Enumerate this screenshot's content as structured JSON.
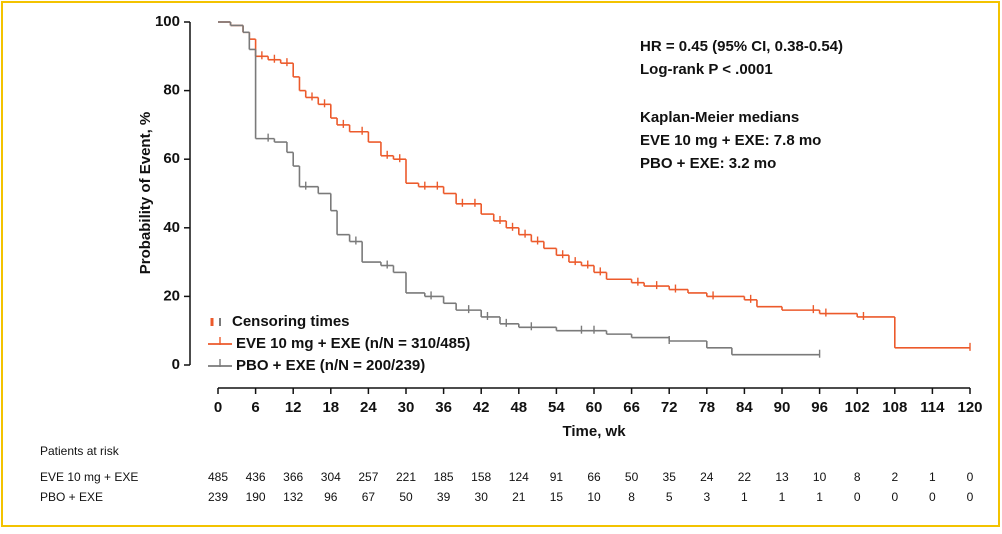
{
  "chart_data": {
    "type": "step",
    "y_label": "Probability of Event, %",
    "x_label": "Time, wk",
    "xlim": [
      0,
      120
    ],
    "ylim": [
      0,
      100
    ],
    "xticks": [
      0,
      6,
      12,
      18,
      24,
      30,
      36,
      42,
      48,
      54,
      60,
      66,
      72,
      78,
      84,
      90,
      96,
      102,
      108,
      114,
      120
    ],
    "yticks": [
      0,
      20,
      40,
      60,
      80,
      100
    ],
    "annotations": [
      "HR = 0.45 (95% CI, 0.38-0.54)",
      "Log-rank P < .0001",
      "Kaplan-Meier medians",
      "EVE 10 mg + EXE: 7.8 mo",
      "PBO + EXE: 3.2 mo"
    ],
    "censor_label": "Censoring times",
    "series": [
      {
        "name": "EVE 10 mg + EXE (n/N = 310/485)",
        "color": "#ec5a2b",
        "x": [
          0,
          2,
          4,
          5,
          6,
          8,
          10,
          12,
          13,
          14,
          16,
          18,
          19,
          21,
          24,
          26,
          28,
          30,
          32,
          36,
          38,
          42,
          44,
          46,
          48,
          50,
          52,
          54,
          56,
          58,
          60,
          62,
          66,
          68,
          72,
          75,
          78,
          84,
          86,
          90,
          96,
          102,
          108,
          120
        ],
        "values": [
          100,
          99,
          97,
          95,
          90,
          89,
          88,
          84,
          80,
          78,
          76,
          72,
          70,
          68,
          65,
          61,
          60,
          53,
          52,
          50,
          47,
          44,
          42,
          40,
          38,
          36,
          34,
          32,
          30,
          29,
          27,
          25,
          24,
          23,
          22,
          21,
          20,
          19,
          17,
          16,
          15,
          14,
          5,
          5
        ],
        "censored": [
          7,
          9,
          11,
          15,
          17,
          20,
          23,
          27,
          29,
          33,
          35,
          39,
          41,
          45,
          47,
          49,
          51,
          55,
          57,
          59,
          61,
          67,
          70,
          73,
          79,
          85,
          95,
          97,
          103,
          120
        ]
      },
      {
        "name": "PBO + EXE (n/N = 200/239)",
        "color": "#7a7a7a",
        "x": [
          0,
          2,
          4,
          5,
          6,
          9,
          11,
          12,
          13,
          16,
          18,
          19,
          21,
          23,
          26,
          28,
          30,
          33,
          36,
          38,
          42,
          45,
          48,
          54,
          62,
          66,
          72,
          78,
          82,
          96
        ],
        "values": [
          100,
          99,
          97,
          92,
          66,
          65,
          62,
          58,
          52,
          50,
          45,
          38,
          36,
          30,
          29,
          27,
          21,
          20,
          18,
          16,
          14,
          12,
          11,
          10,
          9,
          8,
          7,
          5,
          3,
          3
        ],
        "censored": [
          8,
          14,
          22,
          27,
          34,
          40,
          43,
          46,
          50,
          58,
          60,
          72,
          96
        ]
      }
    ],
    "at_risk": {
      "title": "Patients at risk",
      "rows": [
        {
          "name": "EVE 10 mg + EXE",
          "values": [
            485,
            436,
            366,
            304,
            257,
            221,
            185,
            158,
            124,
            91,
            66,
            50,
            35,
            24,
            22,
            13,
            10,
            8,
            2,
            1,
            0
          ]
        },
        {
          "name": "PBO + EXE",
          "values": [
            239,
            190,
            132,
            96,
            67,
            50,
            39,
            30,
            21,
            15,
            10,
            8,
            5,
            3,
            1,
            1,
            1,
            0,
            0,
            0,
            0
          ]
        }
      ]
    }
  }
}
